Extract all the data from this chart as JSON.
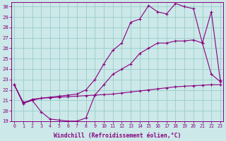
{
  "xlabel": "Windchill (Refroidissement éolien,°C)",
  "background_color": "#cce8e8",
  "grid_color": "#99cccc",
  "line_color": "#880080",
  "xlim_min": -0.3,
  "xlim_max": 23.3,
  "ylim_min": 19,
  "ylim_max": 30.4,
  "xticks": [
    0,
    1,
    2,
    3,
    4,
    5,
    6,
    7,
    8,
    9,
    10,
    11,
    12,
    13,
    14,
    15,
    16,
    17,
    18,
    19,
    20,
    21,
    22,
    23
  ],
  "yticks": [
    19,
    20,
    21,
    22,
    23,
    24,
    25,
    26,
    27,
    28,
    29,
    30
  ],
  "line1_x": [
    0,
    1,
    2,
    3,
    4,
    5,
    6,
    7,
    8,
    9,
    10,
    11,
    12,
    13,
    14,
    15,
    16,
    17,
    18,
    19,
    20,
    21,
    22,
    23
  ],
  "line1_y": [
    22.5,
    20.7,
    21.1,
    21.2,
    21.25,
    21.3,
    21.35,
    21.4,
    21.45,
    21.5,
    21.55,
    21.6,
    21.7,
    21.8,
    21.9,
    22.0,
    22.1,
    22.2,
    22.3,
    22.35,
    22.4,
    22.45,
    22.5,
    22.5
  ],
  "line2_x": [
    0,
    1,
    2,
    3,
    4,
    5,
    6,
    7,
    8,
    9,
    10,
    11,
    12,
    13,
    14,
    15,
    16,
    17,
    18,
    19,
    20,
    21,
    22,
    23
  ],
  "line2_y": [
    22.5,
    20.8,
    21.0,
    19.9,
    19.2,
    19.1,
    19.0,
    19.0,
    19.3,
    21.5,
    22.5,
    23.5,
    24.0,
    24.5,
    25.5,
    26.0,
    26.5,
    26.5,
    26.7,
    26.7,
    26.8,
    26.5,
    23.5,
    22.8
  ],
  "line3_x": [
    0,
    1,
    2,
    3,
    4,
    5,
    6,
    7,
    8,
    9,
    10,
    11,
    12,
    13,
    14,
    15,
    16,
    17,
    18,
    19,
    20,
    21,
    22,
    23
  ],
  "line3_y": [
    22.5,
    20.7,
    21.0,
    21.2,
    21.3,
    21.4,
    21.5,
    21.6,
    22.0,
    23.0,
    24.5,
    25.8,
    26.5,
    28.5,
    28.8,
    30.1,
    29.5,
    29.3,
    30.3,
    30.0,
    29.8,
    26.5,
    29.5,
    22.9
  ]
}
